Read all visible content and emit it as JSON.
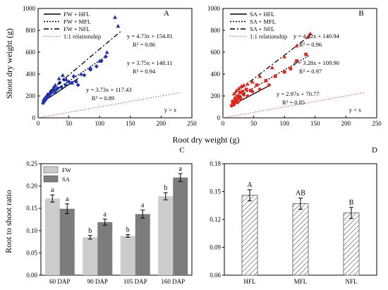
{
  "chart_data": [
    {
      "panel": "A",
      "type": "scatter",
      "ylabel": "Shoot dry weight (g)",
      "xlim": [
        0,
        250
      ],
      "ylim": [
        0,
        1000
      ],
      "xticks": [
        0,
        50,
        100,
        150,
        200,
        250
      ],
      "yticks": [
        0,
        200,
        400,
        600,
        800,
        1000
      ],
      "legend": [
        "FW + HFL",
        "FW + MFL",
        "FW + NFL",
        "1:1 relationship"
      ],
      "identity_label": "y = x",
      "color": "#1f35b5",
      "series": [
        {
          "name": "FW + HFL",
          "marker": "circle",
          "equation": "y = 3.73x + 117.43",
          "r2": "R² = 0.89",
          "slope": 3.73,
          "intercept": 117.43,
          "x_range": [
            8,
            65
          ],
          "x": [
            8,
            9,
            10,
            11,
            12,
            13,
            14,
            15,
            16,
            18,
            20,
            22,
            25,
            28,
            32,
            38,
            45,
            55,
            62
          ],
          "y": [
            135,
            160,
            150,
            175,
            165,
            190,
            180,
            200,
            215,
            205,
            225,
            240,
            255,
            230,
            270,
            280,
            300,
            320,
            330
          ]
        },
        {
          "name": "FW + MFL",
          "marker": "diamond",
          "equation": "y = 3.75x + 148.11",
          "r2": "R² = 0.94",
          "slope": 3.75,
          "intercept": 148.11,
          "x_range": [
            15,
            112
          ],
          "x": [
            18,
            22,
            26,
            30,
            35,
            42,
            50,
            58,
            65,
            75,
            85,
            95,
            103,
            110
          ],
          "y": [
            200,
            230,
            280,
            260,
            320,
            350,
            330,
            380,
            300,
            390,
            440,
            470,
            520,
            560
          ]
        },
        {
          "name": "FW + NFL",
          "marker": "triangle",
          "equation": "y = 4.73x + 154.81",
          "r2": "R² = 0.86",
          "slope": 4.73,
          "intercept": 154.81,
          "x_range": [
            18,
            135
          ],
          "x": [
            22,
            28,
            34,
            40,
            46,
            55,
            70,
            85,
            100,
            112,
            125,
            130
          ],
          "y": [
            240,
            300,
            360,
            390,
            350,
            320,
            400,
            460,
            520,
            600,
            920,
            840
          ]
        }
      ]
    },
    {
      "panel": "B",
      "type": "scatter",
      "xlim": [
        0,
        250
      ],
      "ylim": [
        0,
        1000
      ],
      "xticks": [
        0,
        50,
        100,
        150,
        200,
        250
      ],
      "yticks": [
        0,
        200,
        400,
        600,
        800,
        1000
      ],
      "legend": [
        "SA + HFL",
        "SA + MFL",
        "SA + NFL",
        "1:1 relationship"
      ],
      "identity_label": "y = x",
      "color": "#e3261b",
      "series": [
        {
          "name": "SA + HFL",
          "marker": "circle",
          "equation": "y = 2.97x + 70.77",
          "r2": "R² = 0.85",
          "slope": 2.97,
          "intercept": 70.77,
          "x_range": [
            14,
            78
          ],
          "x": [
            14,
            16,
            18,
            20,
            22,
            24,
            26,
            28,
            30,
            34,
            40,
            48,
            60,
            75
          ],
          "y": [
            110,
            130,
            120,
            145,
            160,
            140,
            175,
            190,
            170,
            210,
            200,
            240,
            260,
            300
          ]
        },
        {
          "name": "SA + MFL",
          "marker": "square",
          "equation": "y = 3.28x + 109.90",
          "r2": "R² = 0.97",
          "slope": 3.28,
          "intercept": 109.9,
          "x_range": [
            15,
            140
          ],
          "x": [
            16,
            20,
            24,
            28,
            32,
            38,
            45,
            55,
            70,
            85,
            100,
            110,
            120,
            135
          ],
          "y": [
            150,
            180,
            200,
            230,
            240,
            260,
            250,
            300,
            340,
            380,
            420,
            450,
            520,
            580
          ]
        },
        {
          "name": "SA + NFL",
          "marker": "triangle",
          "equation": "y = 4.32x + 140.94",
          "r2": "R² = 0.96",
          "slope": 4.32,
          "intercept": 140.94,
          "x_range": [
            16,
            142
          ],
          "x": [
            18,
            22,
            26,
            30,
            34,
            40,
            48,
            60,
            80,
            100,
            120,
            138,
            142
          ],
          "y": [
            220,
            250,
            270,
            290,
            300,
            310,
            330,
            380,
            460,
            560,
            660,
            740,
            770
          ]
        }
      ]
    },
    {
      "panel": "C",
      "type": "bar",
      "ylabel": "Root to shoot ratio",
      "ylim": [
        0,
        0.25
      ],
      "yticks": [
        "0.00",
        "0.05",
        "0.10",
        "0.15",
        "0.20",
        "0.25"
      ],
      "categories": [
        "60 DAP",
        "90 DAP",
        "105 DAP",
        "160 DAP"
      ],
      "series": [
        {
          "name": "FW",
          "color": "#cccccc",
          "values": [
            0.172,
            0.085,
            0.088,
            0.177
          ],
          "errors": [
            0.008,
            0.004,
            0.003,
            0.008
          ],
          "letters": [
            "a",
            "b",
            "b",
            "b"
          ]
        },
        {
          "name": "SA",
          "color": "#7c7c7c",
          "values": [
            0.149,
            0.119,
            0.137,
            0.219
          ],
          "errors": [
            0.011,
            0.007,
            0.009,
            0.009
          ],
          "letters": [
            "a",
            "a",
            "a",
            "a"
          ]
        }
      ]
    },
    {
      "panel": "D",
      "type": "bar",
      "ylim": [
        0.06,
        0.18
      ],
      "yticks": [
        "0.06",
        "0.09",
        "0.12",
        "0.15",
        "0.18"
      ],
      "categories": [
        "HFL",
        "MFL",
        "NFL"
      ],
      "hatch": true,
      "series": [
        {
          "values": [
            0.146,
            0.137,
            0.127
          ],
          "errors": [
            0.006,
            0.006,
            0.006
          ],
          "letters": [
            "A",
            "AB",
            "B"
          ]
        }
      ]
    }
  ],
  "shared": {
    "xlabel_top": "Root dry weight (g)"
  }
}
